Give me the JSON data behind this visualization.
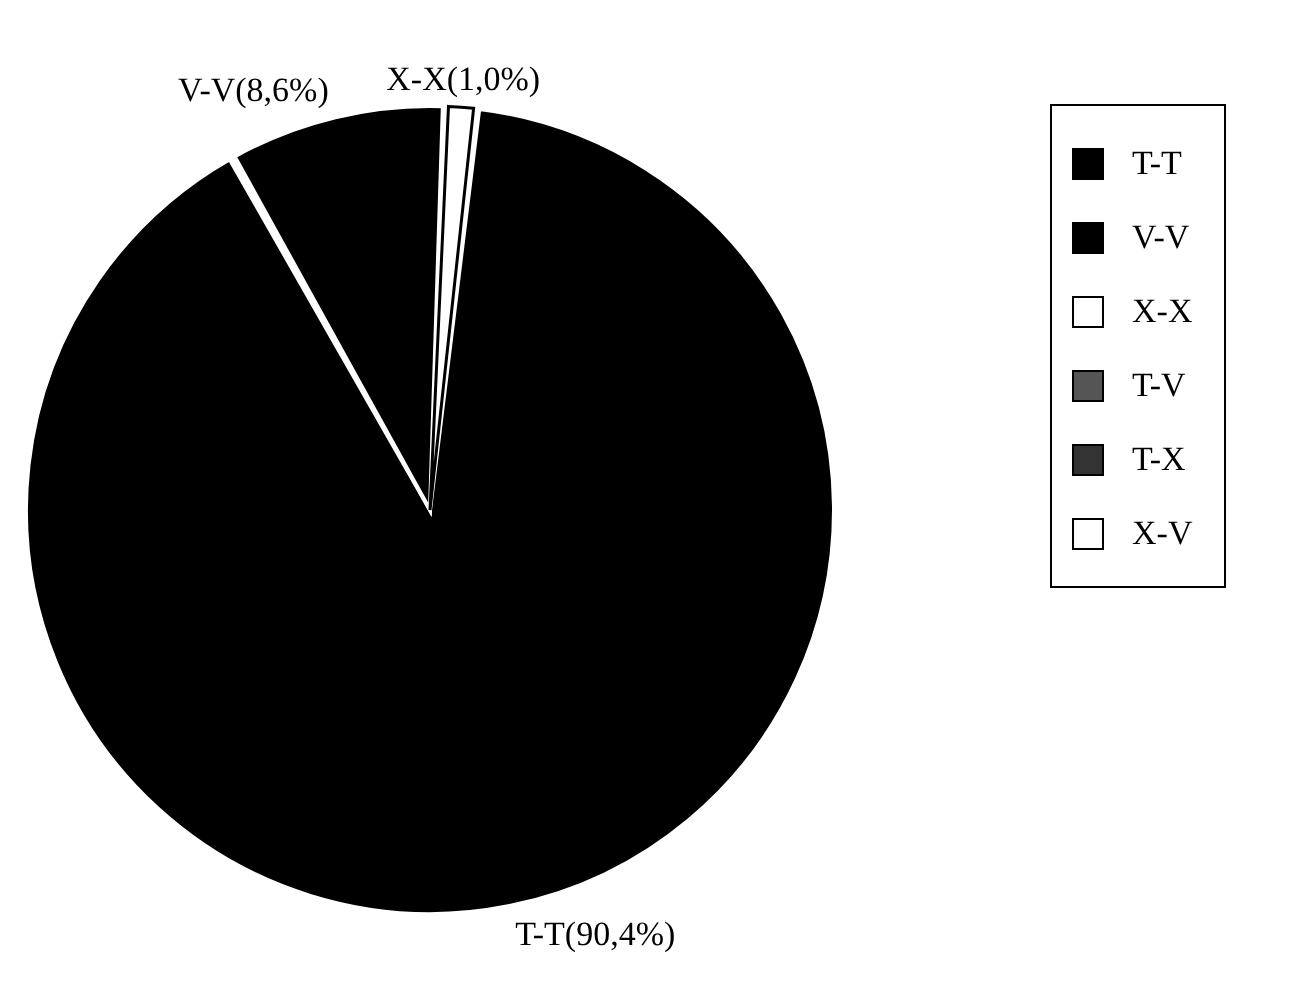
{
  "chart_data": {
    "type": "pie",
    "categories": [
      "T-T",
      "V-V",
      "X-X",
      "T-V",
      "T-X",
      "X-V"
    ],
    "values": [
      90.4,
      8.6,
      1.0,
      0,
      0,
      0
    ],
    "colors": [
      "#000000",
      "#000000",
      "#ffffff",
      "#555555",
      "#333333",
      "#ffffff"
    ],
    "value_labels": [
      "T-T(90,4%)",
      "V-V(8,6%)",
      "X-X(1,0%)",
      null,
      null,
      null
    ],
    "legend": "right"
  }
}
